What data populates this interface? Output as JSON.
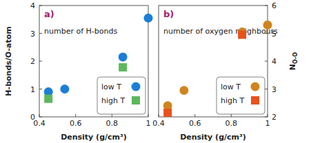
{
  "chart_data": [
    {
      "type": "scatter",
      "title": "a)",
      "annotation": "number of H-bonds",
      "x_label": "Density (g/cm³)",
      "y_label": "H-bonds/O-atom",
      "xlim": [
        0.4,
        1
      ],
      "xticks": [
        0.4,
        0.6,
        0.8,
        1
      ],
      "ylim": [
        0,
        4
      ],
      "yticks": [
        0,
        1,
        2,
        3,
        4
      ],
      "legend": "lower right",
      "series": [
        {
          "name": "low T",
          "color": "#1b7fd6",
          "marker": "circle",
          "x": [
            0.45,
            0.54,
            0.86,
            1.0
          ],
          "values": [
            0.9,
            1.0,
            2.15,
            3.55
          ]
        },
        {
          "name": "high T",
          "color": "#5cb85c",
          "marker": "square",
          "x": [
            0.45,
            0.86
          ],
          "values": [
            0.65,
            1.78
          ]
        }
      ]
    },
    {
      "type": "scatter",
      "title": "b)",
      "annotation": "number of oxygen neighbours",
      "x_label": "Density (g/cm³)",
      "y_label": "NO-O",
      "xlim": [
        0.4,
        1
      ],
      "xticks": [
        0.4,
        0.6,
        0.8,
        1
      ],
      "y2lim": [
        2,
        6
      ],
      "y2ticks": [
        2,
        3,
        4,
        5,
        6
      ],
      "legend": "lower right",
      "series": [
        {
          "name": "low T",
          "color": "#cf851f",
          "marker": "circle",
          "axis": "y2",
          "x": [
            0.45,
            0.54,
            0.86,
            1.0
          ],
          "values": [
            2.4,
            2.95,
            5.05,
            5.3
          ]
        },
        {
          "name": "high T",
          "color": "#e8521c",
          "marker": "square",
          "axis": "y2",
          "x": [
            0.45,
            0.86
          ],
          "values": [
            2.15,
            4.95
          ]
        }
      ]
    }
  ]
}
